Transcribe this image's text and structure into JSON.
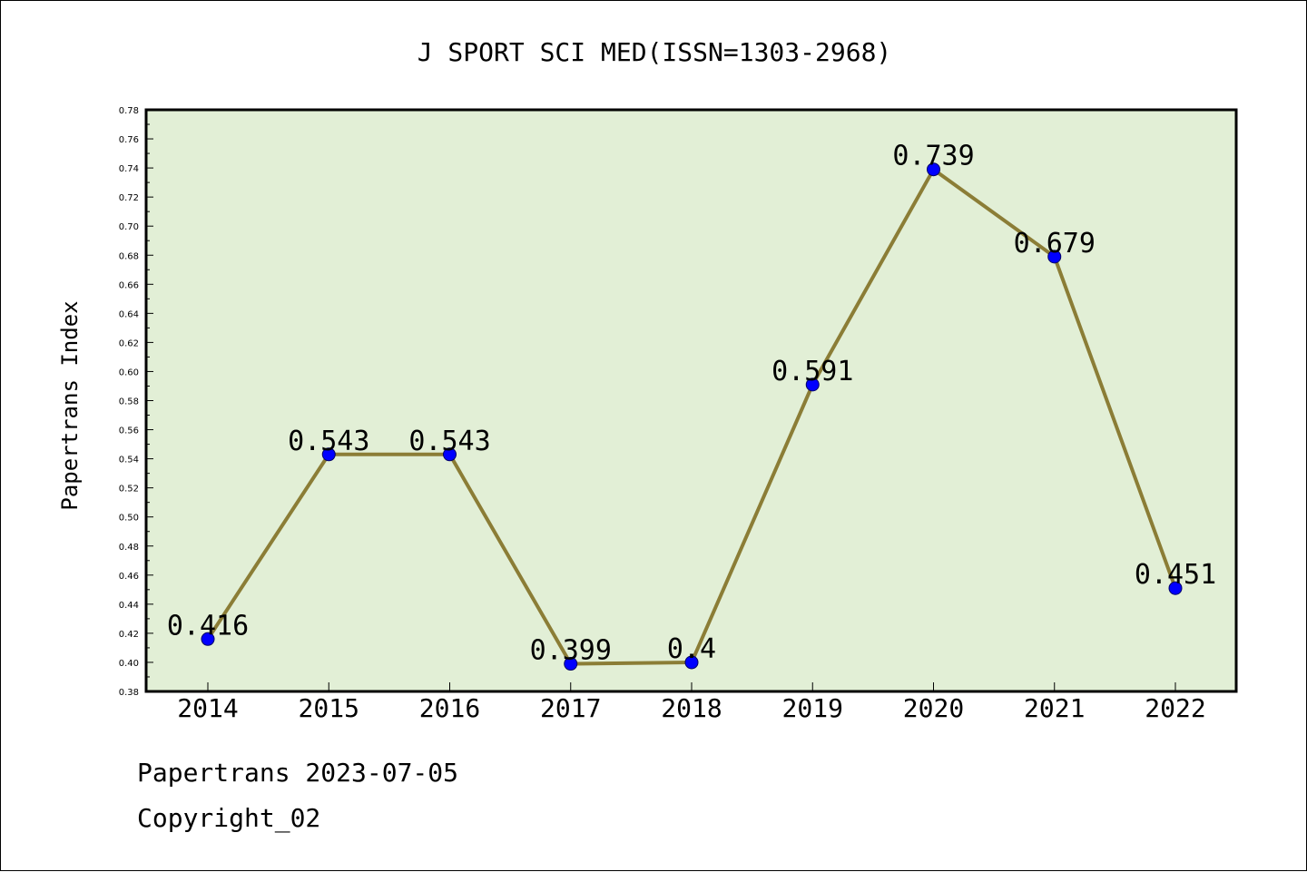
{
  "footer": {
    "source": "Papertrans 2023-07-05",
    "copyright": "Copyright_02"
  },
  "chart_data": {
    "type": "line",
    "title": "J SPORT SCI MED(ISSN=1303-2968)",
    "xlabel": "",
    "ylabel": "Papertrans Index",
    "categories": [
      "2014",
      "2015",
      "2016",
      "2017",
      "2018",
      "2019",
      "2020",
      "2021",
      "2022"
    ],
    "series": [
      {
        "values": [
          0.416,
          0.543,
          0.543,
          0.399,
          0.4,
          0.591,
          0.739,
          0.679,
          0.451
        ],
        "labels": [
          "0.416",
          "0.543",
          "0.543",
          "0.399",
          "0.4",
          "0.591",
          "0.739",
          "0.679",
          "0.451"
        ]
      }
    ],
    "ylim": [
      0.38,
      0.78
    ],
    "yticks": [
      "0.38",
      "0.40",
      "0.42",
      "0.44",
      "0.46",
      "0.48",
      "0.50",
      "0.52",
      "0.54",
      "0.56",
      "0.58",
      "0.60",
      "0.62",
      "0.64",
      "0.66",
      "0.68",
      "0.70",
      "0.72",
      "0.74",
      "0.76",
      "0.78"
    ],
    "grid": false,
    "legend": "none",
    "colors": {
      "plot_background": "#e2efd6",
      "line": "#8b7d36",
      "marker": "#0000ff",
      "axis": "#000000"
    }
  }
}
